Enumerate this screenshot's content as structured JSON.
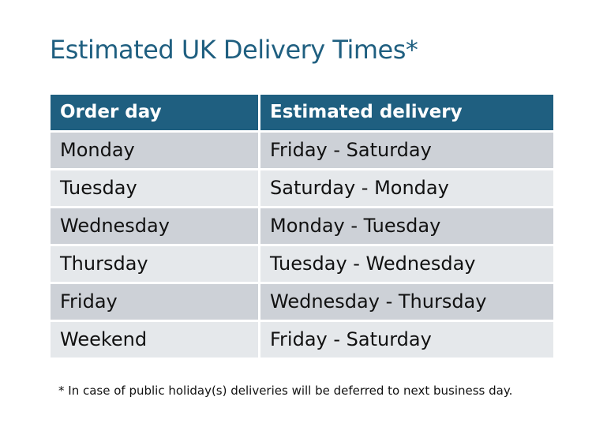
{
  "title": "Estimated UK Delivery Times*",
  "table": {
    "headers": [
      "Order day",
      "Estimated delivery"
    ],
    "rows": [
      [
        "Monday",
        "Friday - Saturday"
      ],
      [
        "Tuesday",
        "Saturday - Monday"
      ],
      [
        "Wednesday",
        "Monday - Tuesday"
      ],
      [
        "Thursday",
        "Tuesday - Wednesday"
      ],
      [
        "Friday",
        "Wednesday - Thursday"
      ],
      [
        "Weekend",
        "Friday - Saturday"
      ]
    ]
  },
  "footnote": "* In case of public holiday(s) deliveries will be deferred to next business day.",
  "colors": {
    "header": "#1f5f80",
    "row_dark": "#cdd1d7",
    "row_light": "#e5e8eb"
  }
}
